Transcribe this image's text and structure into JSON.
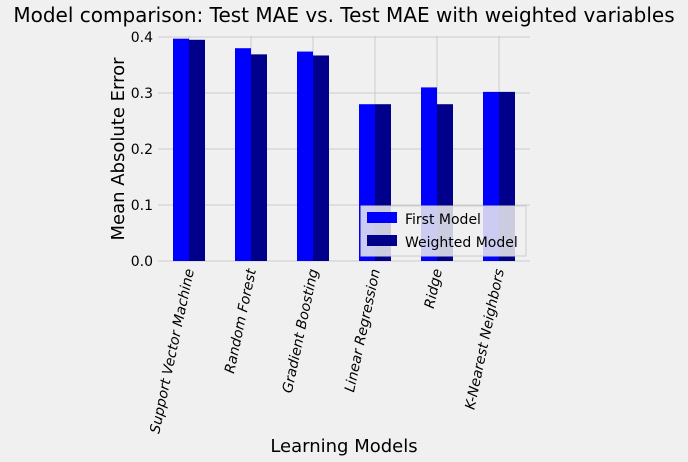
{
  "chart_data": {
    "type": "bar",
    "title": "Model comparison: Test MAE vs. Test MAE with weighted variables",
    "xlabel": "Learning Models",
    "ylabel": "Mean Absolute Error",
    "categories": [
      "Support Vector Machine",
      "Random Forest",
      "Gradient Boosting",
      "Linear Regression",
      "Ridge",
      "K-Nearest Neighbors"
    ],
    "series": [
      {
        "name": "First Model",
        "color": "#0000ff",
        "values": [
          0.397,
          0.38,
          0.374,
          0.28,
          0.31,
          0.302
        ]
      },
      {
        "name": "Weighted Model",
        "color": "#00008b",
        "values": [
          0.395,
          0.369,
          0.367,
          0.28,
          0.28,
          0.302
        ]
      }
    ],
    "yticks": [
      "0.0",
      "0.1",
      "0.2",
      "0.3",
      "0.4"
    ],
    "ylim": [
      0,
      0.4
    ],
    "grid": true,
    "legend_position": "bottom-right"
  }
}
